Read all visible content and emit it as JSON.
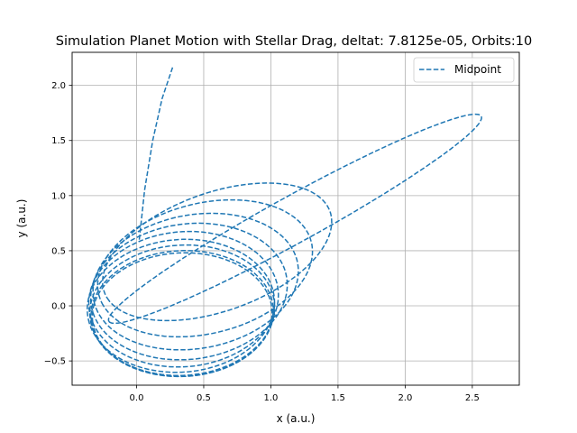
{
  "chart_data": {
    "type": "line",
    "title": "Simulation Planet Motion with Stellar Drag, deltat: 7.8125e-05, Orbits:10",
    "xlabel": "x (a.u.)",
    "ylabel": "y (a.u.)",
    "xlim": [
      -0.48,
      2.85
    ],
    "ylim": [
      -0.72,
      2.3
    ],
    "xticks": [
      0.0,
      0.5,
      1.0,
      1.5,
      2.0,
      2.5
    ],
    "xtick_labels": [
      "0.0",
      "0.5",
      "1.0",
      "1.5",
      "2.0",
      "2.5"
    ],
    "yticks": [
      -0.5,
      0.0,
      0.5,
      1.0,
      1.5,
      2.0
    ],
    "ytick_labels": [
      "−0.5",
      "0.0",
      "0.5",
      "1.0",
      "1.5",
      "2.0"
    ],
    "grid": true,
    "legend_placement": "top-right",
    "series": [
      {
        "name": "Midpoint",
        "color": "#1f77b4",
        "linestyle": "dashed",
        "orbits": [
          {
            "c": [
              1.18,
              0.79
            ],
            "a": 1.67,
            "b": 0.2,
            "angle_deg": 34,
            "phase_deg": [
              -180,
              180
            ]
          },
          {
            "c": [
              0.6,
              0.49
            ],
            "a": 0.92,
            "b": 0.52,
            "angle_deg": 27,
            "phase_deg": [
              -180,
              180
            ]
          },
          {
            "c": [
              0.51,
              0.34
            ],
            "a": 0.83,
            "b": 0.58,
            "angle_deg": 22,
            "phase_deg": [
              -180,
              180
            ]
          },
          {
            "c": [
              0.44,
              0.22
            ],
            "a": 0.78,
            "b": 0.6,
            "angle_deg": 18,
            "phase_deg": [
              -180,
              180
            ]
          },
          {
            "c": [
              0.39,
              0.13
            ],
            "a": 0.74,
            "b": 0.61,
            "angle_deg": 15,
            "phase_deg": [
              -180,
              180
            ]
          },
          {
            "c": [
              0.35,
              0.06
            ],
            "a": 0.71,
            "b": 0.61,
            "angle_deg": 12,
            "phase_deg": [
              -180,
              180
            ]
          },
          {
            "c": [
              0.33,
              0.0
            ],
            "a": 0.7,
            "b": 0.6,
            "angle_deg": 10,
            "phase_deg": [
              -180,
              180
            ]
          },
          {
            "c": [
              0.34,
              -0.04
            ],
            "a": 0.69,
            "b": 0.59,
            "angle_deg": 8,
            "phase_deg": [
              -180,
              180
            ]
          },
          {
            "c": [
              0.34,
              -0.07
            ],
            "a": 0.68,
            "b": 0.57,
            "angle_deg": 6,
            "phase_deg": [
              -180,
              180
            ]
          },
          {
            "c": [
              0.34,
              -0.08
            ],
            "a": 0.67,
            "b": 0.56,
            "angle_deg": 5,
            "phase_deg": [
              -180,
              180
            ]
          }
        ],
        "escape_x": [
          0.02,
          0.06,
          0.12,
          0.19,
          0.27
        ],
        "escape_y": [
          0.6,
          1.05,
          1.5,
          1.88,
          2.17
        ]
      }
    ]
  }
}
